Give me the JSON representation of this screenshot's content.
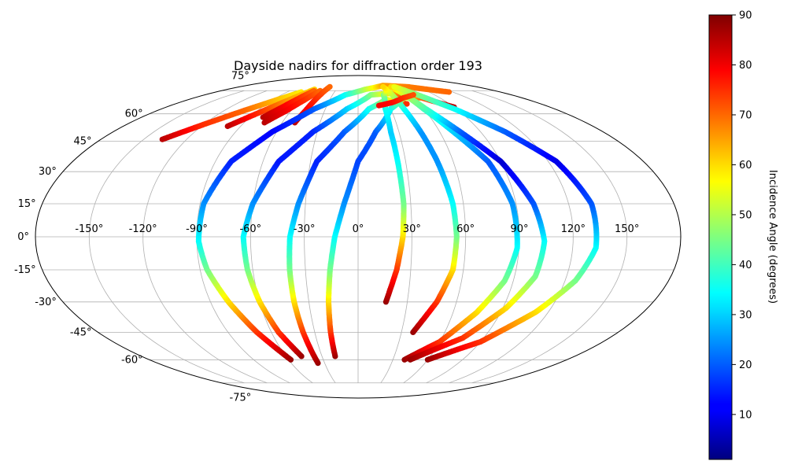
{
  "chart_data": {
    "type": "scatter",
    "projection": "mollweide",
    "title": "Dayside nadirs for diffraction order 193",
    "grid": true,
    "longitude_ticks": [
      "-150°",
      "-120°",
      "-90°",
      "-60°",
      "-30°",
      "0°",
      "30°",
      "60°",
      "90°",
      "120°",
      "150°"
    ],
    "latitude_ticks": [
      "75°",
      "60°",
      "45°",
      "30°",
      "15°",
      "0°",
      "-15°",
      "-30°",
      "-45°",
      "-60°",
      "-75°"
    ],
    "colorbar": {
      "label": "Incidence Angle (degrees)",
      "colormap": "jet",
      "range": [
        1,
        90
      ],
      "ticks": [
        "10",
        "20",
        "30",
        "40",
        "50",
        "60",
        "70",
        "80",
        "90"
      ],
      "position": "right"
    },
    "series": [
      {
        "points": [
          [
            -137,
            46,
            85
          ],
          [
            -120,
            54,
            75
          ],
          [
            -102,
            62,
            70
          ],
          [
            -85,
            69,
            62
          ],
          [
            -72,
            74,
            58
          ]
        ]
      },
      {
        "points": [
          [
            -100,
            53,
            85
          ],
          [
            -86,
            61,
            75
          ],
          [
            -72,
            69,
            65
          ],
          [
            -60,
            76,
            60
          ]
        ]
      },
      {
        "points": [
          [
            -79,
            58,
            85
          ],
          [
            -71,
            64,
            80
          ],
          [
            -64,
            70,
            75
          ],
          [
            -58,
            75,
            70
          ]
        ]
      },
      {
        "points": [
          [
            -74,
            55,
            85
          ],
          [
            -64,
            62,
            80
          ],
          [
            -56,
            69,
            75
          ],
          [
            -50,
            75,
            70
          ]
        ]
      },
      {
        "points": [
          [
            -50,
            55,
            85
          ],
          [
            -47,
            62,
            80
          ],
          [
            -45,
            70,
            75
          ],
          [
            -43,
            78,
            70
          ]
        ]
      },
      {
        "points": [
          [
            -58,
            -60,
            88
          ],
          [
            -70,
            -45,
            75
          ],
          [
            -79,
            -30,
            60
          ],
          [
            -86,
            -15,
            45
          ],
          [
            -89,
            -2,
            35
          ],
          [
            -88,
            15,
            25
          ],
          [
            -80,
            35,
            15
          ],
          [
            -63,
            50,
            12
          ],
          [
            -40,
            63,
            20
          ],
          [
            -15,
            72,
            35
          ],
          [
            10,
            76,
            50
          ],
          [
            40,
            79,
            65
          ],
          [
            75,
            78,
            68
          ],
          [
            115,
            74,
            70
          ]
        ]
      },
      {
        "points": [
          [
            -47,
            -58,
            88
          ],
          [
            -55,
            -45,
            75
          ],
          [
            -60,
            -30,
            60
          ],
          [
            -63,
            -15,
            45
          ],
          [
            -64,
            0,
            35
          ],
          [
            -60,
            15,
            25
          ],
          [
            -50,
            35,
            14
          ],
          [
            -33,
            50,
            15
          ],
          [
            -10,
            63,
            30
          ],
          [
            15,
            72,
            45
          ],
          [
            40,
            73,
            60
          ],
          [
            60,
            70,
            80
          ]
        ]
      },
      {
        "points": [
          [
            -36,
            -62,
            88
          ],
          [
            -38,
            -45,
            75
          ],
          [
            -39,
            -30,
            60
          ],
          [
            -39,
            -15,
            45
          ],
          [
            -38,
            0,
            35
          ],
          [
            -34,
            15,
            25
          ],
          [
            -26,
            35,
            15
          ],
          [
            -10,
            50,
            20
          ],
          [
            10,
            63,
            35
          ],
          [
            30,
            69,
            50
          ],
          [
            48,
            66,
            75
          ]
        ]
      },
      {
        "points": [
          [
            -19,
            -58,
            88
          ],
          [
            -19,
            -45,
            75
          ],
          [
            -18,
            -30,
            60
          ],
          [
            -16,
            -15,
            45
          ],
          [
            -13,
            0,
            35
          ],
          [
            -8,
            15,
            25
          ],
          [
            0,
            35,
            18
          ],
          [
            13,
            50,
            20
          ],
          [
            30,
            63,
            35
          ],
          [
            50,
            70,
            50
          ],
          [
            70,
            70,
            70
          ],
          [
            90,
            64,
            85
          ]
        ]
      },
      {
        "points": [
          [
            17,
            -30,
            88
          ],
          [
            22,
            -15,
            75
          ],
          [
            25,
            0,
            60
          ],
          [
            26,
            15,
            45
          ],
          [
            25,
            35,
            35
          ],
          [
            24,
            50,
            30
          ],
          [
            25,
            63,
            35
          ],
          [
            30,
            72,
            45
          ],
          [
            40,
            76,
            60
          ]
        ]
      },
      {
        "points": [
          [
            38,
            -45,
            88
          ],
          [
            48,
            -30,
            75
          ],
          [
            54,
            -15,
            60
          ],
          [
            55,
            0,
            45
          ],
          [
            54,
            15,
            35
          ],
          [
            50,
            35,
            25
          ],
          [
            46,
            50,
            25
          ],
          [
            42,
            63,
            35
          ],
          [
            40,
            72,
            50
          ],
          [
            38,
            78,
            60
          ]
        ]
      },
      {
        "points": [
          [
            40,
            -60,
            88
          ],
          [
            60,
            -50,
            75
          ],
          [
            75,
            -35,
            60
          ],
          [
            85,
            -20,
            45
          ],
          [
            89,
            -5,
            35
          ],
          [
            88,
            15,
            25
          ],
          [
            82,
            35,
            20
          ],
          [
            70,
            50,
            30
          ],
          [
            60,
            63,
            40
          ],
          [
            55,
            72,
            50
          ],
          [
            50,
            78,
            60
          ]
        ]
      },
      {
        "points": [
          [
            45,
            -60,
            88
          ],
          [
            75,
            -48,
            75
          ],
          [
            92,
            -33,
            60
          ],
          [
            102,
            -18,
            45
          ],
          [
            104,
            -2,
            35
          ],
          [
            100,
            15,
            20
          ],
          [
            90,
            35,
            8
          ],
          [
            75,
            50,
            20
          ],
          [
            62,
            63,
            40
          ],
          [
            55,
            72,
            50
          ],
          [
            52,
            78,
            60
          ]
        ]
      },
      {
        "points": [
          [
            60,
            -60,
            88
          ],
          [
            90,
            -50,
            75
          ],
          [
            112,
            -35,
            60
          ],
          [
            126,
            -20,
            45
          ],
          [
            133,
            -5,
            35
          ],
          [
            133,
            15,
            20
          ],
          [
            125,
            35,
            10
          ],
          [
            108,
            50,
            20
          ],
          [
            88,
            63,
            35
          ],
          [
            70,
            72,
            45
          ],
          [
            55,
            78,
            55
          ]
        ]
      },
      {
        "points": [
          [
            20,
            65,
            80
          ],
          [
            35,
            67,
            78
          ],
          [
            50,
            70,
            75
          ],
          [
            65,
            72,
            72
          ]
        ]
      }
    ]
  }
}
